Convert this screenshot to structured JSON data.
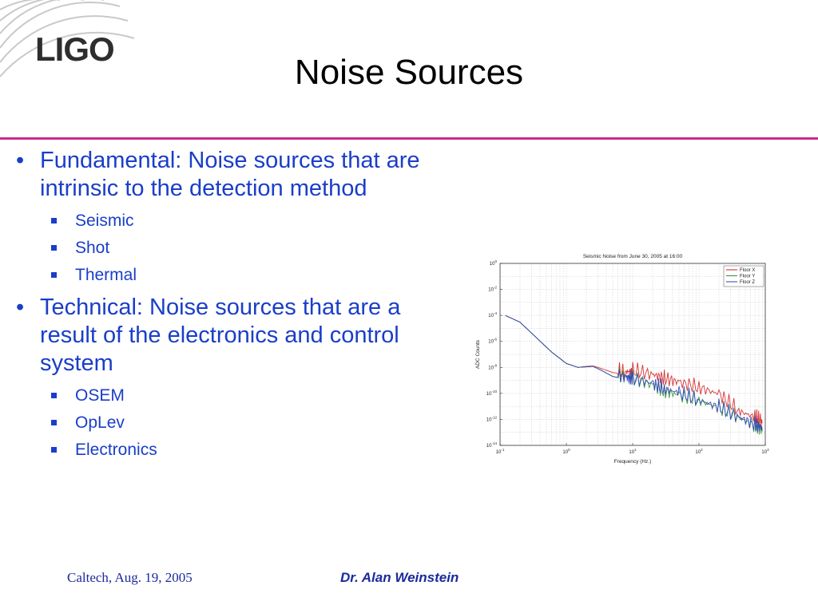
{
  "logo": {
    "text": "LIGO"
  },
  "slide": {
    "title": "Noise Sources"
  },
  "bullets": [
    {
      "text": "Fundamental: Noise sources that are intrinsic to the detection method",
      "subs": [
        "Seismic",
        "Shot",
        "Thermal"
      ]
    },
    {
      "text": "Technical: Noise sources that are a result of the electronics and control system",
      "subs": [
        "OSEM",
        "OpLev",
        "Electronics"
      ]
    }
  ],
  "footer": {
    "left": "Caltech, Aug. 19, 2005",
    "right": "Dr. Alan Weinstein"
  },
  "colors": {
    "accent_rule": "#cc2a8c",
    "bullet_text": "#1a3ec8",
    "footer_text": "#1a2a9c"
  },
  "chart_data": {
    "type": "line",
    "title": "Seismic Noise from June 30, 2005 at 16:00",
    "xlabel": "Frequency (Hz.)",
    "ylabel": "ADC Counts",
    "xscale": "log",
    "yscale": "log",
    "xlim": [
      0.1,
      1000
    ],
    "ylim": [
      1e-14,
      1
    ],
    "x_ticks": [
      {
        "base": "10",
        "exp": "-1"
      },
      {
        "base": "10",
        "exp": "0"
      },
      {
        "base": "10",
        "exp": "1"
      },
      {
        "base": "10",
        "exp": "2"
      },
      {
        "base": "10",
        "exp": "3"
      }
    ],
    "y_ticks": [
      {
        "base": "10",
        "exp": "0"
      },
      {
        "base": "10",
        "exp": "-2"
      },
      {
        "base": "10",
        "exp": "-4"
      },
      {
        "base": "10",
        "exp": "-6"
      },
      {
        "base": "10",
        "exp": "-8"
      },
      {
        "base": "10",
        "exp": "-10"
      },
      {
        "base": "10",
        "exp": "-12"
      },
      {
        "base": "10",
        "exp": "-14"
      }
    ],
    "grid": true,
    "legend": "top-right",
    "series": [
      {
        "name": "Floor X",
        "color": "#d21e1e",
        "x": [
          0.12,
          0.2,
          0.35,
          0.6,
          1.0,
          1.5,
          2.0,
          2.5,
          3.0,
          5.0,
          8.0,
          10,
          20,
          30,
          50,
          100,
          200,
          400,
          700,
          900
        ],
        "y": [
          0.0001,
          3e-05,
          2e-06,
          1.5e-07,
          2e-08,
          1e-08,
          1.2e-08,
          1.3e-08,
          1e-08,
          4e-09,
          3e-09,
          4e-09,
          2e-09,
          1e-09,
          5e-10,
          2e-10,
          6e-11,
          3e-12,
          1e-12,
          5e-13
        ]
      },
      {
        "name": "Floor Y",
        "color": "#2f8f2f",
        "x": [
          0.12,
          0.2,
          0.35,
          0.6,
          1.0,
          1.5,
          2.0,
          2.5,
          3.0,
          5.0,
          8.0,
          10,
          20,
          30,
          50,
          100,
          200,
          400,
          700,
          900
        ],
        "y": [
          0.0001,
          3e-05,
          2e-06,
          1.5e-07,
          2e-08,
          1e-08,
          1.1e-08,
          1.2e-08,
          8e-09,
          2e-09,
          1.3e-09,
          1e-09,
          3e-10,
          1e-10,
          5e-11,
          2e-11,
          5e-12,
          1e-12,
          2e-13,
          1.2e-13
        ]
      },
      {
        "name": "Floor Z",
        "color": "#2b3fbf",
        "x": [
          0.12,
          0.2,
          0.35,
          0.6,
          1.0,
          1.5,
          2.0,
          2.5,
          3.0,
          5.0,
          8.0,
          10,
          20,
          30,
          50,
          100,
          200,
          400,
          700,
          900
        ],
        "y": [
          0.0001,
          3e-05,
          2e-06,
          1.5e-07,
          2e-08,
          1e-08,
          1.1e-08,
          1.2e-08,
          8e-09,
          2e-09,
          1.2e-09,
          1e-09,
          4e-10,
          1.5e-10,
          8e-11,
          2e-11,
          6e-12,
          1e-12,
          3e-13,
          1.5e-13
        ]
      }
    ]
  }
}
